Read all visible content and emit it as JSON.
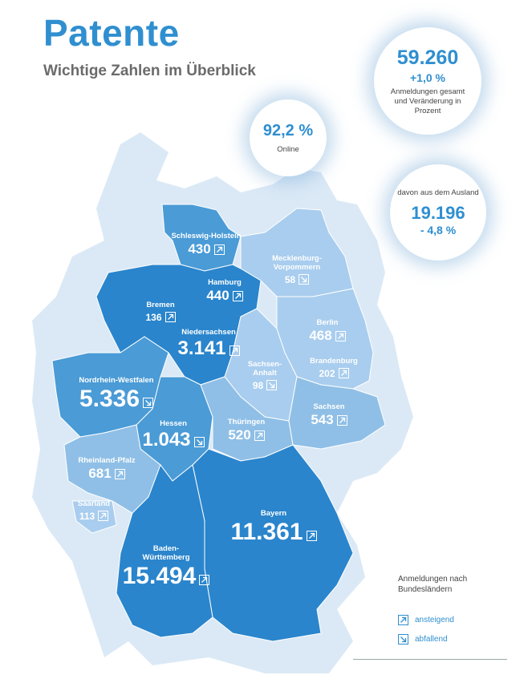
{
  "header": {
    "title": "Patente",
    "subtitle": "Wichtige Zahlen im Überblick"
  },
  "summary": {
    "total": {
      "value": "59.260",
      "change": "+1,0 %",
      "note": "Anmeldungen gesamt und Veränderung in Prozent"
    },
    "online": {
      "value": "92,2 %",
      "note": "Online"
    },
    "foreign": {
      "note": "davon aus dem Ausland",
      "value": "19.196",
      "change": "- 4,8 %"
    }
  },
  "states": [
    {
      "name": "Schleswig-Holstein",
      "value": "430",
      "trend": "up"
    },
    {
      "name": "Hamburg",
      "value": "440",
      "trend": "up"
    },
    {
      "name": "Mecklenburg-Vorpommern",
      "value": "58",
      "trend": "down"
    },
    {
      "name": "Bremen",
      "value": "136",
      "trend": "up"
    },
    {
      "name": "Niedersachsen",
      "value": "3.141",
      "trend": "up"
    },
    {
      "name": "Berlin",
      "value": "468",
      "trend": "up"
    },
    {
      "name": "Brandenburg",
      "value": "202",
      "trend": "up"
    },
    {
      "name": "Sachsen-Anhalt",
      "value": "98",
      "trend": "down"
    },
    {
      "name": "Nordrhein-Westfalen",
      "value": "5.336",
      "trend": "down"
    },
    {
      "name": "Sachsen",
      "value": "543",
      "trend": "up"
    },
    {
      "name": "Thüringen",
      "value": "520",
      "trend": "up"
    },
    {
      "name": "Hessen",
      "value": "1.043",
      "trend": "down"
    },
    {
      "name": "Rheinland-Pfalz",
      "value": "681",
      "trend": "up"
    },
    {
      "name": "Saarland",
      "value": "113",
      "trend": "up"
    },
    {
      "name": "Bayern",
      "value": "11.361",
      "trend": "up"
    },
    {
      "name": "Baden-Württemberg",
      "value": "15.494",
      "trend": "up"
    }
  ],
  "legend": {
    "title": "Anmeldungen nach Bundesländern",
    "up": "ansteigend",
    "down": "abfallend"
  },
  "colors": {
    "accent": "#2f8fd0",
    "dark": "#2a85cc",
    "mid": "#4a9bd6",
    "light": "#8fbfe6",
    "lighter": "#a9cdee",
    "bg": "#dbe9f6"
  }
}
